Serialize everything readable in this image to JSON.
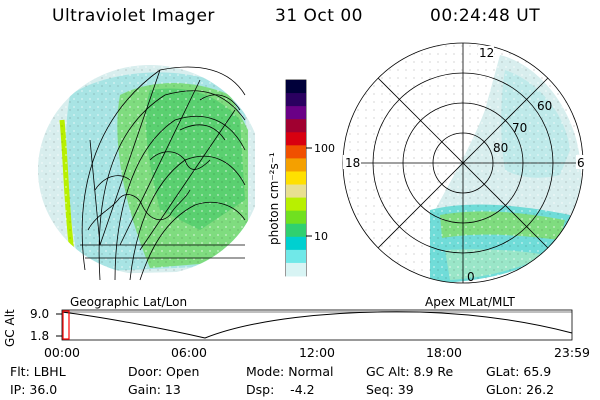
{
  "header": {
    "title": "Ultraviolet Imager",
    "date": "31 Oct 00",
    "time": "00:24:48 UT"
  },
  "colorbar": {
    "unit_label": "photon cm⁻²s⁻¹",
    "ticks": [
      "100",
      "10"
    ],
    "colors": [
      "#00003a",
      "#2a0060",
      "#6a0086",
      "#a00030",
      "#d80010",
      "#f05000",
      "#f4a000",
      "#ffe000",
      "#e8e090",
      "#b8f000",
      "#70e020",
      "#30d070",
      "#00d0d0",
      "#70e8e8",
      "#d8f4f4"
    ]
  },
  "left_panel": {
    "caption": "Geographic Lat/Lon"
  },
  "right_panel": {
    "caption": "Apex MLat/MLT",
    "mlt_labels": {
      "top": "12",
      "left": "18",
      "right": "6",
      "bottom": "0"
    },
    "lat_labels": [
      "60",
      "70",
      "80"
    ]
  },
  "timeline": {
    "ylabel": "GC Alt",
    "y_ticks": [
      "9.0",
      "1.8"
    ],
    "x_ticks": [
      "00:00",
      "06:00",
      "12:00",
      "18:00",
      "23:59"
    ]
  },
  "info": [
    [
      "Flt: LBHL",
      "Door: Open",
      "Mode: Normal",
      "GC Alt: 8.9 Re",
      "GLat: 65.9"
    ],
    [
      "IP: 36.0",
      "Gain: 13",
      "Dsp:    -4.2",
      "Seq: 39",
      "GLon: 26.2"
    ]
  ]
}
